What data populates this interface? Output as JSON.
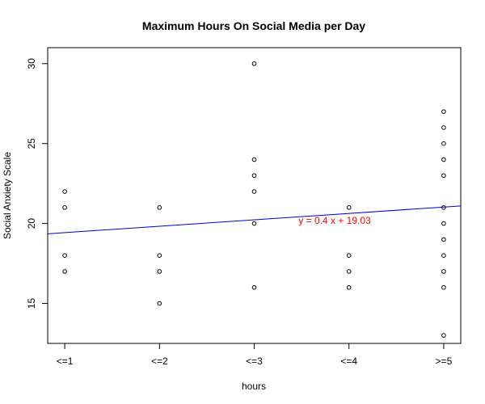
{
  "chart_data": {
    "type": "scatter",
    "title": "Maximum Hours On Social Media per Day",
    "xlabel": "hours",
    "ylabel": "Social Anxiety Scale",
    "categories": [
      "<=1",
      "<=2",
      "<=3",
      "<=4",
      ">=5"
    ],
    "x_values": [
      1,
      2,
      3,
      4,
      5
    ],
    "ylim": [
      12.5,
      31.0
    ],
    "yticks": [
      15,
      20,
      25,
      30
    ],
    "points": [
      {
        "x": 1,
        "y": 22
      },
      {
        "x": 1,
        "y": 21
      },
      {
        "x": 1,
        "y": 18
      },
      {
        "x": 1,
        "y": 17
      },
      {
        "x": 2,
        "y": 21
      },
      {
        "x": 2,
        "y": 18
      },
      {
        "x": 2,
        "y": 17
      },
      {
        "x": 2,
        "y": 15
      },
      {
        "x": 3,
        "y": 30
      },
      {
        "x": 3,
        "y": 24
      },
      {
        "x": 3,
        "y": 23
      },
      {
        "x": 3,
        "y": 22
      },
      {
        "x": 3,
        "y": 20
      },
      {
        "x": 3,
        "y": 16
      },
      {
        "x": 4,
        "y": 21
      },
      {
        "x": 4,
        "y": 18
      },
      {
        "x": 4,
        "y": 17
      },
      {
        "x": 4,
        "y": 16
      },
      {
        "x": 5,
        "y": 27
      },
      {
        "x": 5,
        "y": 26
      },
      {
        "x": 5,
        "y": 25
      },
      {
        "x": 5,
        "y": 24
      },
      {
        "x": 5,
        "y": 23
      },
      {
        "x": 5,
        "y": 21
      },
      {
        "x": 5,
        "y": 20
      },
      {
        "x": 5,
        "y": 19
      },
      {
        "x": 5,
        "y": 18
      },
      {
        "x": 5,
        "y": 17
      },
      {
        "x": 5,
        "y": 16
      },
      {
        "x": 5,
        "y": 13
      }
    ],
    "regression": {
      "slope": 0.4,
      "intercept": 19.03,
      "color": "#0000cc",
      "label": "y =  0.4 x +  19.03",
      "label_color": "#ff0000"
    },
    "grid": false,
    "point_style": "open-circle"
  }
}
